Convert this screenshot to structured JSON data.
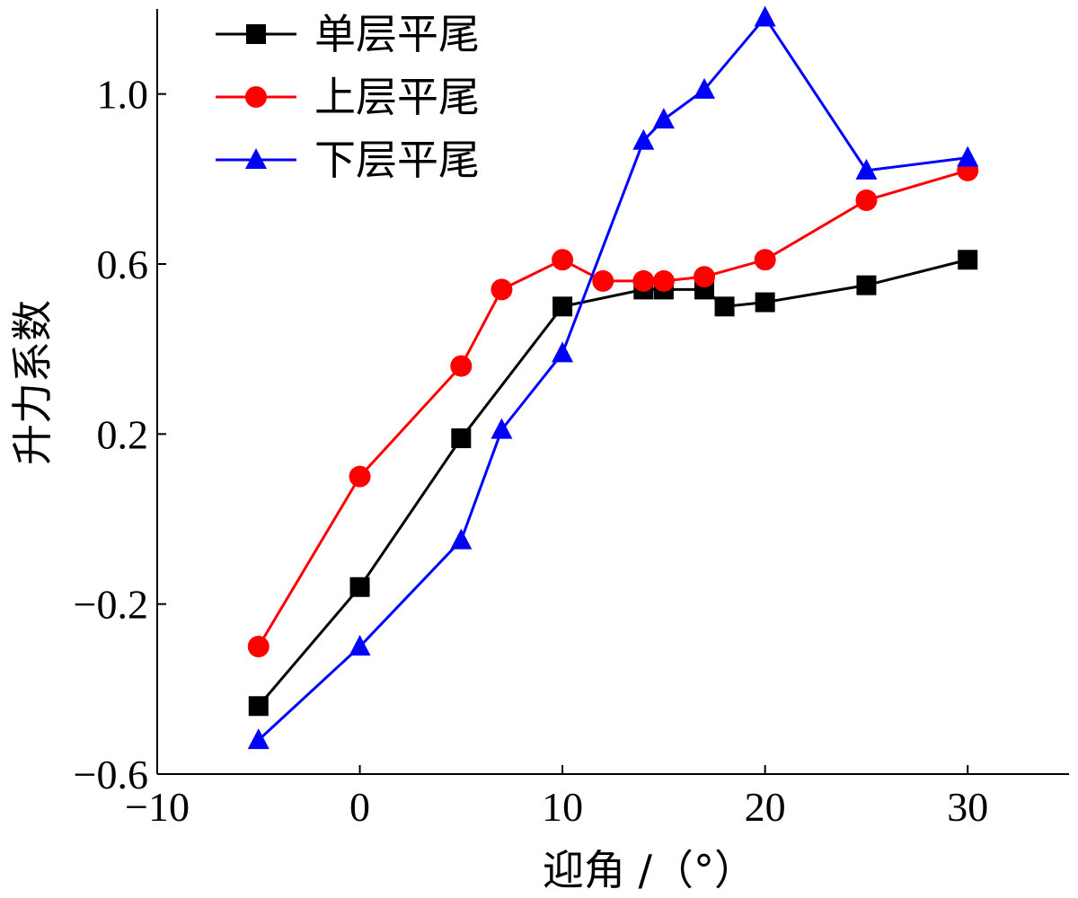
{
  "chart_data": {
    "type": "line",
    "xlabel": "迎角 /（°）",
    "ylabel": "升力系数",
    "xlim": [
      -10,
      35
    ],
    "ylim": [
      -0.6,
      1.2
    ],
    "xticks": [
      -10,
      0,
      10,
      20,
      30
    ],
    "xtick_labels": [
      "−10",
      "0",
      "10",
      "20",
      "30"
    ],
    "yticks": [
      -0.6,
      -0.2,
      0.2,
      0.6,
      1.0
    ],
    "ytick_labels": [
      "−0.6",
      "−0.2",
      "0.2",
      "0.6",
      "1.0"
    ],
    "grid": false,
    "legend_position": "top-left",
    "series": [
      {
        "name": "单层平尾",
        "color": "#000000",
        "marker": "square",
        "x": [
          -5,
          0,
          5,
          10,
          14,
          15,
          17,
          18,
          20,
          25,
          30
        ],
        "y": [
          -0.44,
          -0.16,
          0.19,
          0.5,
          0.54,
          0.54,
          0.54,
          0.5,
          0.51,
          0.55,
          0.61
        ]
      },
      {
        "name": "上层平尾",
        "color": "#ff0000",
        "marker": "circle",
        "x": [
          -5,
          0,
          5,
          7,
          10,
          12,
          14,
          15,
          17,
          20,
          25,
          30
        ],
        "y": [
          -0.3,
          0.1,
          0.36,
          0.54,
          0.61,
          0.56,
          0.56,
          0.56,
          0.57,
          0.61,
          0.75,
          0.82
        ]
      },
      {
        "name": "下层平尾",
        "color": "#0000ff",
        "marker": "triangle",
        "x": [
          -5,
          0,
          5,
          7,
          10,
          14,
          15,
          17,
          20,
          25,
          30
        ],
        "y": [
          -0.52,
          -0.3,
          -0.05,
          0.21,
          0.39,
          0.89,
          0.94,
          1.01,
          1.18,
          0.82,
          0.85
        ]
      }
    ]
  }
}
